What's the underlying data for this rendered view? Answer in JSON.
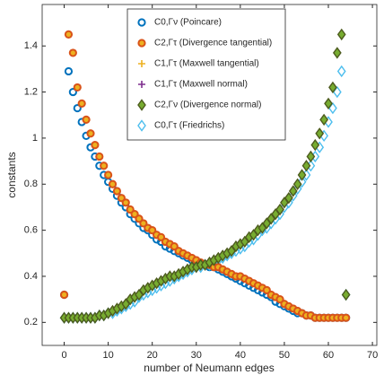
{
  "chart_data": {
    "type": "scatter",
    "xlabel": "number of Neumann edges",
    "ylabel": "constants",
    "xlim": [
      -5,
      71
    ],
    "ylim": [
      0.1,
      1.58
    ],
    "xticks": [
      0,
      10,
      20,
      30,
      40,
      50,
      60,
      70
    ],
    "yticks": [
      0.2,
      0.4,
      0.6,
      0.8,
      1,
      1.2,
      1.4
    ],
    "x": [
      0,
      1,
      2,
      3,
      4,
      5,
      6,
      7,
      8,
      9,
      10,
      11,
      12,
      13,
      14,
      15,
      16,
      17,
      18,
      19,
      20,
      21,
      22,
      23,
      24,
      25,
      26,
      27,
      28,
      29,
      30,
      31,
      32,
      33,
      34,
      35,
      36,
      37,
      38,
      39,
      40,
      41,
      42,
      43,
      44,
      45,
      46,
      47,
      48,
      49,
      50,
      51,
      52,
      53,
      54,
      55,
      56,
      57,
      58,
      59,
      60,
      61,
      62,
      63,
      64
    ],
    "series": [
      {
        "name": "C0,Γν (Poincare)",
        "color": "#0072BD",
        "marker": "o",
        "values": [
          0.32,
          1.29,
          1.2,
          1.13,
          1.07,
          1.01,
          0.96,
          0.92,
          0.88,
          0.84,
          0.81,
          0.78,
          0.75,
          0.72,
          0.7,
          0.67,
          0.65,
          0.63,
          0.61,
          0.6,
          0.58,
          0.56,
          0.55,
          0.53,
          0.52,
          0.51,
          0.5,
          0.49,
          0.48,
          0.47,
          0.46,
          0.45,
          0.45,
          0.44,
          0.44,
          0.43,
          0.42,
          0.41,
          0.4,
          0.39,
          0.38,
          0.37,
          0.36,
          0.35,
          0.34,
          0.33,
          0.32,
          0.31,
          0.29,
          0.28,
          0.27,
          0.26,
          0.25,
          0.24,
          0.24,
          0.23,
          0.23,
          0.22,
          0.22,
          0.22,
          0.22,
          0.22,
          0.22,
          0.22,
          0.22
        ]
      },
      {
        "name": "C2,Γτ (Divergence tangential)",
        "color": "#D95319",
        "fill": "#EDB120",
        "marker": "o",
        "values": [
          0.32,
          1.45,
          1.37,
          1.22,
          1.15,
          1.08,
          1.02,
          0.97,
          0.92,
          0.88,
          0.84,
          0.8,
          0.77,
          0.74,
          0.72,
          0.69,
          0.67,
          0.65,
          0.63,
          0.61,
          0.6,
          0.58,
          0.57,
          0.55,
          0.54,
          0.53,
          0.51,
          0.5,
          0.49,
          0.48,
          0.47,
          0.46,
          0.45,
          0.45,
          0.44,
          0.44,
          0.43,
          0.42,
          0.41,
          0.4,
          0.4,
          0.39,
          0.38,
          0.37,
          0.36,
          0.35,
          0.34,
          0.32,
          0.31,
          0.3,
          0.28,
          0.27,
          0.26,
          0.25,
          0.24,
          0.23,
          0.23,
          0.22,
          0.22,
          0.22,
          0.22,
          0.22,
          0.22,
          0.22,
          0.22
        ]
      },
      {
        "name": "C1,Γτ (Maxwell tangential)",
        "color": "#EDB120",
        "marker": "+",
        "values": [
          0.32,
          1.45,
          1.37,
          1.22,
          1.15,
          1.08,
          1.02,
          0.97,
          0.92,
          0.88,
          0.84,
          0.8,
          0.77,
          0.74,
          0.72,
          0.69,
          0.67,
          0.65,
          0.63,
          0.61,
          0.6,
          0.58,
          0.57,
          0.55,
          0.54,
          0.53,
          0.51,
          0.5,
          0.49,
          0.48,
          0.47,
          0.46,
          0.45,
          0.45,
          0.44,
          0.44,
          0.43,
          0.42,
          0.41,
          0.4,
          0.4,
          0.39,
          0.38,
          0.37,
          0.36,
          0.35,
          0.34,
          0.32,
          0.31,
          0.3,
          0.28,
          0.27,
          0.26,
          0.25,
          0.24,
          0.23,
          0.23,
          0.22,
          0.22,
          0.22,
          0.22,
          0.22,
          0.22,
          0.22,
          0.22
        ]
      },
      {
        "name": "C1,Γτ (Maxwell normal)",
        "color": "#7E2F8E",
        "marker": "+",
        "values": [
          0.22,
          0.22,
          0.22,
          0.22,
          0.22,
          0.22,
          0.22,
          0.22,
          0.23,
          0.23,
          0.24,
          0.25,
          0.26,
          0.27,
          0.28,
          0.3,
          0.31,
          0.32,
          0.34,
          0.35,
          0.36,
          0.37,
          0.38,
          0.39,
          0.4,
          0.4,
          0.41,
          0.42,
          0.43,
          0.44,
          0.44,
          0.45,
          0.45,
          0.46,
          0.47,
          0.48,
          0.49,
          0.5,
          0.51,
          0.53,
          0.54,
          0.55,
          0.57,
          0.58,
          0.6,
          0.61,
          0.63,
          0.65,
          0.67,
          0.69,
          0.72,
          0.74,
          0.77,
          0.8,
          0.84,
          0.88,
          0.92,
          0.97,
          1.02,
          1.08,
          1.15,
          1.22,
          1.37,
          1.45,
          0.32
        ]
      },
      {
        "name": "C2,Γν (Divergence normal)",
        "color": "#4D5B1E",
        "fill": "#77AC30",
        "marker": "d",
        "values": [
          0.22,
          0.22,
          0.22,
          0.22,
          0.22,
          0.22,
          0.22,
          0.22,
          0.23,
          0.23,
          0.24,
          0.25,
          0.26,
          0.27,
          0.28,
          0.3,
          0.31,
          0.32,
          0.34,
          0.35,
          0.36,
          0.37,
          0.38,
          0.39,
          0.4,
          0.4,
          0.41,
          0.42,
          0.43,
          0.44,
          0.44,
          0.45,
          0.45,
          0.46,
          0.47,
          0.48,
          0.49,
          0.5,
          0.51,
          0.53,
          0.54,
          0.55,
          0.57,
          0.58,
          0.6,
          0.61,
          0.63,
          0.65,
          0.67,
          0.69,
          0.72,
          0.74,
          0.77,
          0.8,
          0.84,
          0.88,
          0.92,
          0.97,
          1.02,
          1.08,
          1.15,
          1.22,
          1.37,
          1.45,
          0.32
        ]
      },
      {
        "name": "C0,Γτ (Friedrichs)",
        "color": "#4DBEEE",
        "marker": "d",
        "values": [
          0.22,
          0.22,
          0.22,
          0.22,
          0.22,
          0.22,
          0.22,
          0.22,
          0.23,
          0.23,
          0.24,
          0.24,
          0.25,
          0.26,
          0.27,
          0.28,
          0.29,
          0.31,
          0.32,
          0.33,
          0.34,
          0.35,
          0.36,
          0.37,
          0.38,
          0.39,
          0.4,
          0.41,
          0.42,
          0.43,
          0.44,
          0.44,
          0.45,
          0.45,
          0.46,
          0.47,
          0.48,
          0.49,
          0.5,
          0.51,
          0.52,
          0.53,
          0.55,
          0.56,
          0.58,
          0.6,
          0.61,
          0.63,
          0.65,
          0.67,
          0.7,
          0.72,
          0.75,
          0.78,
          0.81,
          0.84,
          0.88,
          0.92,
          0.96,
          1.01,
          1.07,
          1.13,
          1.2,
          1.29,
          0.32
        ]
      }
    ],
    "legend": "upper center"
  }
}
